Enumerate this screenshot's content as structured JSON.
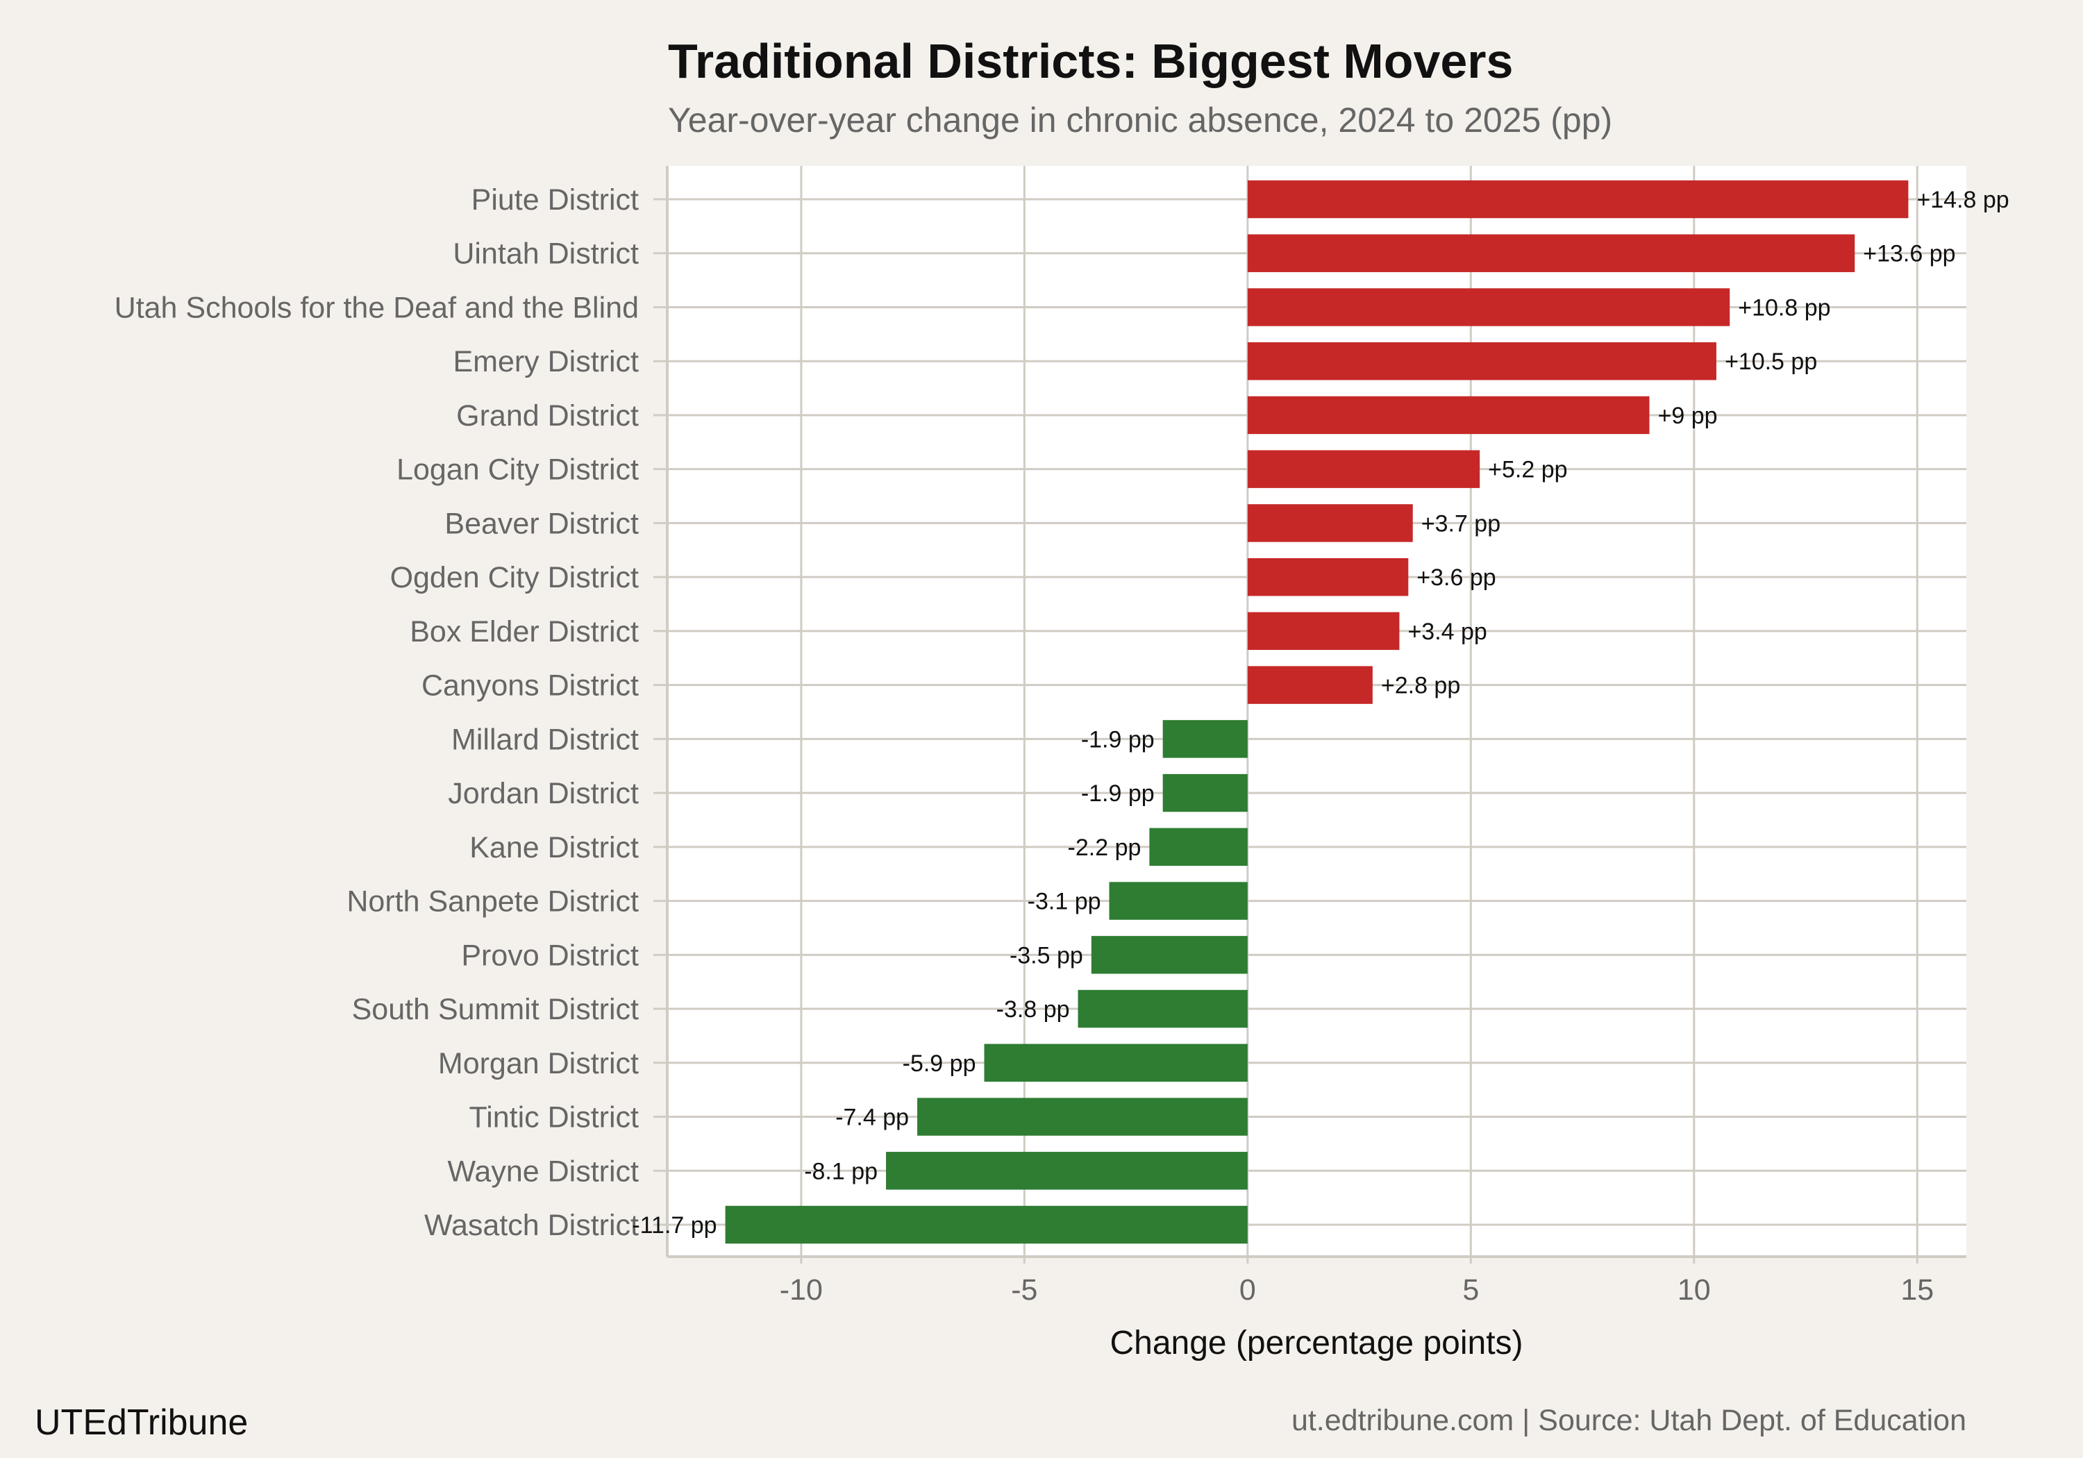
{
  "chart_data": {
    "type": "bar",
    "orientation": "horizontal",
    "title": "Traditional Districts: Biggest Movers",
    "subtitle": "Year-over-year change in chronic absence, 2024 to 2025 (pp)",
    "xlabel": "Change (percentage points)",
    "ylabel": "",
    "xlim": [
      -13,
      16.1
    ],
    "xticks": [
      -10,
      -5,
      0,
      5,
      10,
      15
    ],
    "grid": true,
    "categories": [
      "Piute District",
      "Uintah District",
      "Utah Schools for the Deaf and the Blind",
      "Emery District",
      "Grand District",
      "Logan City District",
      "Beaver District",
      "Ogden City District",
      "Box Elder District",
      "Canyons District",
      "Millard District",
      "Jordan District",
      "Kane District",
      "North Sanpete District",
      "Provo District",
      "South Summit District",
      "Morgan District",
      "Tintic District",
      "Wayne District",
      "Wasatch District"
    ],
    "values": [
      14.8,
      13.6,
      10.8,
      10.5,
      9,
      5.2,
      3.7,
      3.6,
      3.4,
      2.8,
      -1.9,
      -1.9,
      -2.2,
      -3.1,
      -3.5,
      -3.8,
      -5.9,
      -7.4,
      -8.1,
      -11.7
    ],
    "data_labels": [
      "+14.8 pp",
      "+13.6 pp",
      "+10.8 pp",
      "+10.5 pp",
      "+9 pp",
      "+5.2 pp",
      "+3.7 pp",
      "+3.6 pp",
      "+3.4 pp",
      "+2.8 pp",
      "-1.9 pp",
      "-1.9 pp",
      "-2.2 pp",
      "-3.1 pp",
      "-3.5 pp",
      "-3.8 pp",
      "-5.9 pp",
      "-7.4 pp",
      "-8.1 pp",
      "-11.7 pp"
    ],
    "colors": {
      "increase": "#c62828",
      "decrease": "#2e7d32",
      "background": "#f4f1ec",
      "panel": "#ffffff",
      "grid": "#d0ccc4"
    }
  },
  "footer": {
    "brand": "UTEdTribune",
    "source": "ut.edtribune.com | Source: Utah Dept. of Education"
  }
}
